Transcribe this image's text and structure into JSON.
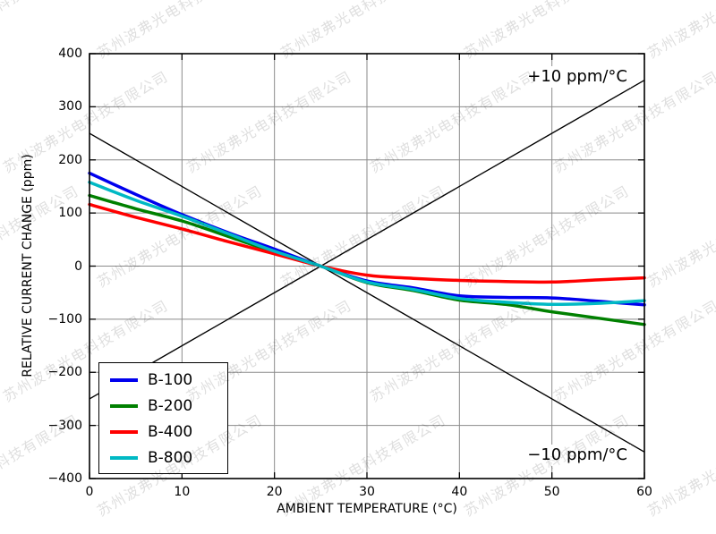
{
  "watermark": {
    "text": "苏州波弗光电科技有限公司"
  },
  "chart_data": {
    "type": "line",
    "title": "",
    "xlabel": "AMBIENT TEMPERATURE (°C)",
    "ylabel": "RELATIVE CURRENT CHANGE (ppm)",
    "xlim": [
      0,
      60
    ],
    "ylim": [
      -400,
      400
    ],
    "xticks": [
      0,
      10,
      20,
      30,
      40,
      50,
      60
    ],
    "yticks": [
      400,
      300,
      200,
      100,
      0,
      -100,
      -200,
      -300,
      -400
    ],
    "grid": true,
    "legend": {
      "position": "lower left",
      "entries": [
        "B-100",
        "B-200",
        "B-400",
        "B-800"
      ]
    },
    "x": [
      0,
      5,
      10,
      15,
      20,
      25,
      30,
      35,
      40,
      45,
      50,
      55,
      60
    ],
    "series": [
      {
        "name": "B-100",
        "color": "#0000ee",
        "values": [
          175,
          135,
          97,
          63,
          32,
          0,
          -28,
          -41,
          -56,
          -59,
          -60,
          -66,
          -73
        ]
      },
      {
        "name": "B-200",
        "color": "#008000",
        "values": [
          133,
          108,
          85,
          56,
          26,
          0,
          -31,
          -46,
          -64,
          -72,
          -86,
          -98,
          -110
        ]
      },
      {
        "name": "B-400",
        "color": "#ff0000",
        "values": [
          116,
          92,
          70,
          46,
          23,
          0,
          -17,
          -23,
          -27,
          -29,
          -30,
          -26,
          -22
        ]
      },
      {
        "name": "B-800",
        "color": "#00b9c4",
        "values": [
          158,
          124,
          94,
          61,
          28,
          0,
          -30,
          -44,
          -61,
          -68,
          -72,
          -70,
          -65
        ]
      }
    ],
    "reference_lines": [
      {
        "label": "+10 ppm/°C",
        "color": "#000000",
        "x": [
          0,
          60
        ],
        "y": [
          -250,
          350
        ]
      },
      {
        "label": "−10 ppm/°C",
        "color": "#000000",
        "x": [
          0,
          60
        ],
        "y": [
          250,
          -350
        ]
      }
    ]
  }
}
